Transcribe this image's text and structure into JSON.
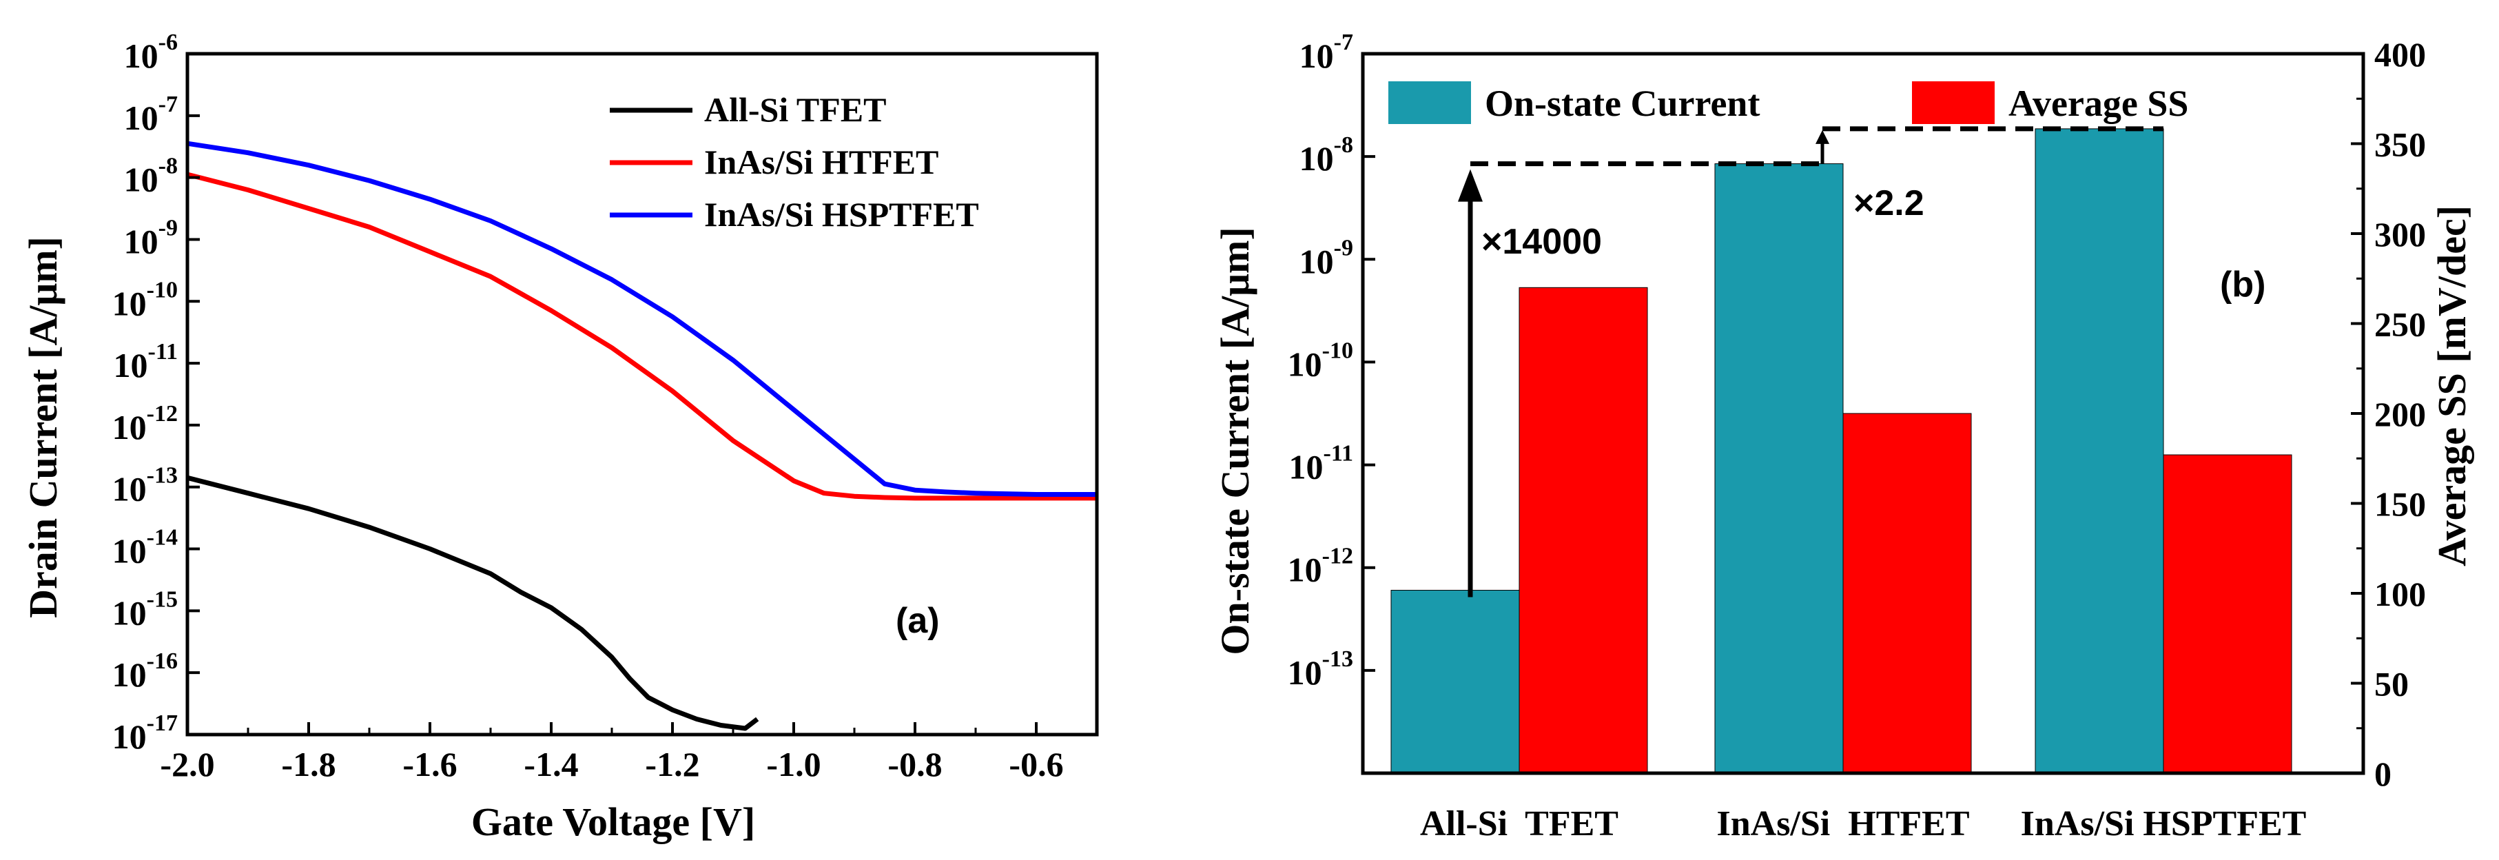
{
  "chart_data": [
    {
      "type": "line",
      "panel_label": "(a)",
      "xlabel": "Gate Voltage [V]",
      "ylabel": "Drain Current [A/μm]",
      "xlim": [
        -2.0,
        -0.5
      ],
      "ylim_exp": [
        -17,
        -6
      ],
      "yscale": "log",
      "x_ticks": [
        "-2.0",
        "-1.8",
        "-1.6",
        "-1.4",
        "-1.2",
        "-1.0",
        "-0.8",
        "-0.6"
      ],
      "x_tick_values": [
        -2.0,
        -1.8,
        -1.6,
        -1.4,
        -1.2,
        -1.0,
        -0.8,
        -0.6
      ],
      "y_tick_exps": [
        "-6",
        "-7",
        "-8",
        "-9",
        "-10",
        "-11",
        "-12",
        "-13",
        "-14",
        "-15",
        "-16",
        "-17"
      ],
      "y_tick_base": "10",
      "legend_position": "top-right",
      "series": [
        {
          "name": "All-Si TFET",
          "color": "#000000",
          "x": [
            -2.0,
            -1.9,
            -1.8,
            -1.7,
            -1.6,
            -1.5,
            -1.45,
            -1.4,
            -1.35,
            -1.3,
            -1.27,
            -1.24,
            -1.2,
            -1.16,
            -1.12,
            -1.08,
            -1.06
          ],
          "log10_y": [
            -12.85,
            -13.1,
            -13.35,
            -13.65,
            -14.0,
            -14.4,
            -14.7,
            -14.95,
            -15.3,
            -15.75,
            -16.1,
            -16.4,
            -16.6,
            -16.75,
            -16.85,
            -16.9,
            -16.75
          ]
        },
        {
          "name": "InAs/Si HTFET",
          "color": "#ff0000",
          "x": [
            -2.0,
            -1.9,
            -1.8,
            -1.7,
            -1.6,
            -1.5,
            -1.4,
            -1.3,
            -1.2,
            -1.1,
            -1.0,
            -0.95,
            -0.9,
            -0.85,
            -0.8,
            -0.7,
            -0.6,
            -0.5
          ],
          "log10_y": [
            -7.95,
            -8.2,
            -8.5,
            -8.8,
            -9.2,
            -9.6,
            -10.15,
            -10.75,
            -11.45,
            -12.25,
            -12.9,
            -13.1,
            -13.15,
            -13.17,
            -13.18,
            -13.18,
            -13.18,
            -13.18
          ]
        },
        {
          "name": "InAs/Si HSPTFET",
          "color": "#0000ff",
          "x": [
            -2.0,
            -1.9,
            -1.8,
            -1.7,
            -1.6,
            -1.5,
            -1.4,
            -1.3,
            -1.2,
            -1.1,
            -1.0,
            -0.9,
            -0.85,
            -0.8,
            -0.75,
            -0.7,
            -0.6,
            -0.5
          ],
          "log10_y": [
            -7.45,
            -7.6,
            -7.8,
            -8.05,
            -8.35,
            -8.7,
            -9.15,
            -9.65,
            -10.25,
            -10.95,
            -11.75,
            -12.55,
            -12.95,
            -13.05,
            -13.08,
            -13.1,
            -13.12,
            -13.12
          ]
        }
      ]
    },
    {
      "type": "bar",
      "panel_label": "(b)",
      "categories": [
        "All-Si  TFET",
        "InAs/Si  HTFET",
        "InAs/Si HSPTFET"
      ],
      "ylabel": "On-state Current [A/μm]",
      "ylabel_right": "Average SS [mV/dec]",
      "ylim_left_exp": [
        -14,
        -7
      ],
      "yscale_left": "log",
      "ylim_right": [
        0,
        400
      ],
      "y_left_tick_exps": [
        "-7",
        "-8",
        "-9",
        "-10",
        "-11",
        "-12",
        "-13"
      ],
      "y_left_tick_base": "10",
      "y_right_ticks": [
        "0",
        "50",
        "100",
        "150",
        "200",
        "250",
        "300",
        "350",
        "400"
      ],
      "y_right_tick_values": [
        0,
        50,
        100,
        150,
        200,
        250,
        300,
        350,
        400
      ],
      "legend_position": "top",
      "series": [
        {
          "name": "On-state Current",
          "color": "#1a9aac",
          "axis": "left",
          "log10_values": [
            -12.22,
            -8.07,
            -7.73
          ]
        },
        {
          "name": "Average SS",
          "color": "#ff0000",
          "axis": "right",
          "values": [
            270,
            200,
            177
          ]
        }
      ],
      "annotations": [
        "×14000",
        "×2.2"
      ]
    }
  ]
}
